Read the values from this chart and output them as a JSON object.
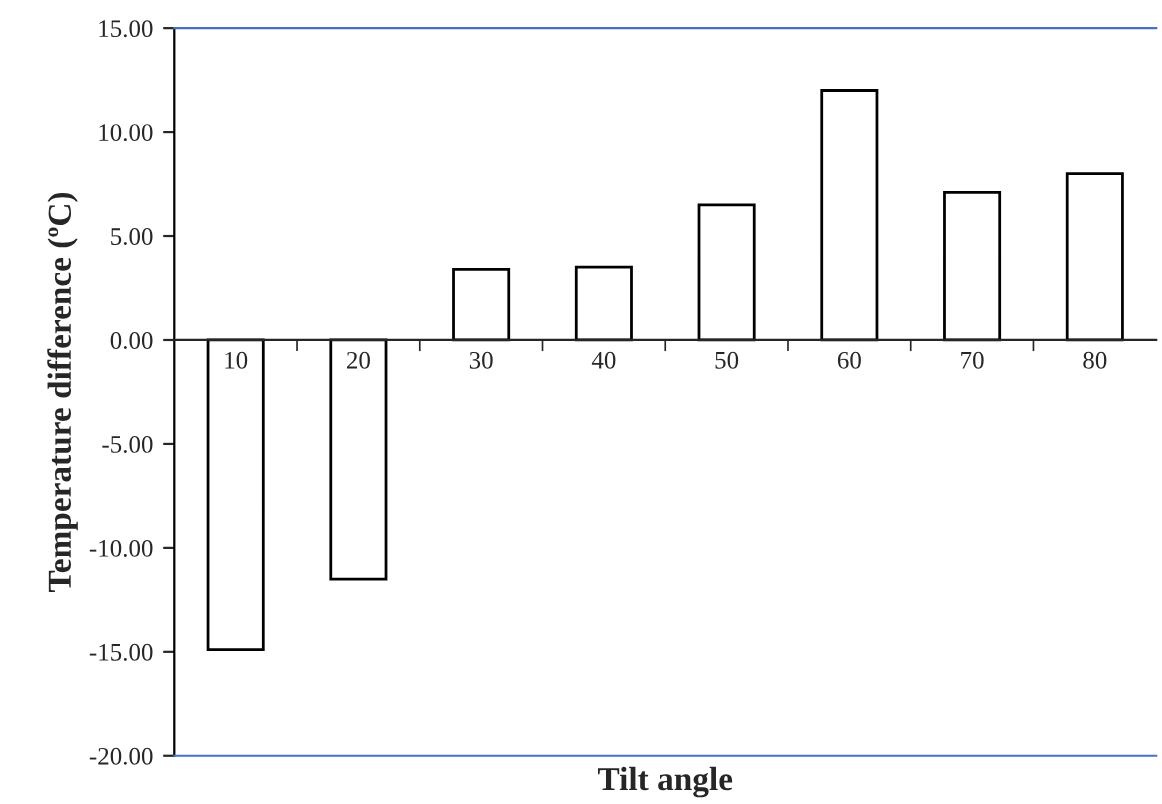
{
  "chart_data": {
    "type": "bar",
    "xlabel": "Tilt angle",
    "ylabel": "Temperature difference (ºC)",
    "categories": [
      "10",
      "20",
      "30",
      "40",
      "50",
      "60",
      "70",
      "80"
    ],
    "values": [
      -14.9,
      -11.5,
      3.4,
      3.5,
      6.5,
      12.0,
      7.1,
      8.0
    ],
    "color": "#ffffff",
    "ylim": [
      -20,
      15
    ],
    "yticks": [
      {
        "value": -20,
        "label": "-20.00"
      },
      {
        "value": -15,
        "label": "-15.00"
      },
      {
        "value": -10,
        "label": "-10.00"
      },
      {
        "value": -5,
        "label": "-5.00"
      },
      {
        "value": 0,
        "label": "0.00"
      },
      {
        "value": 5,
        "label": "5.00"
      },
      {
        "value": 10,
        "label": "10.00"
      },
      {
        "value": 15,
        "label": "15.00"
      }
    ],
    "grid": false,
    "legend": false
  }
}
